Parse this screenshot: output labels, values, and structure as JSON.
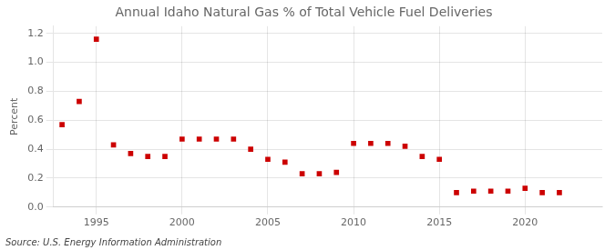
{
  "chart_data": {
    "type": "scatter",
    "title": "Annual Idaho Natural Gas % of Total Vehicle Fuel Deliveries",
    "ylabel": "Percent",
    "annotations": [
      "Source: U.S. Energy Information Administration"
    ],
    "x": [
      1993,
      1994,
      1995,
      1996,
      1997,
      1998,
      1999,
      2000,
      2001,
      2002,
      2003,
      2004,
      2005,
      2006,
      2007,
      2008,
      2009,
      2010,
      2011,
      2012,
      2013,
      2014,
      2015,
      2016,
      2017,
      2018,
      2019,
      2020,
      2021,
      2022,
      2023
    ],
    "values": [
      0.57,
      0.73,
      1.16,
      0.43,
      0.37,
      0.35,
      0.35,
      0.47,
      0.47,
      0.47,
      0.47,
      0.4,
      0.33,
      0.31,
      0.23,
      0.23,
      0.24,
      0.44,
      0.44,
      0.44,
      0.42,
      0.35,
      0.33,
      0.1,
      0.11,
      0.11,
      0.11,
      0.13,
      0.1,
      0.1,
      null
    ],
    "color": "#cc0000",
    "marker": "square",
    "xlim": [
      1992.5,
      2024.5
    ],
    "ylim": [
      0.0,
      1.25
    ],
    "xticks": [
      1995,
      2000,
      2005,
      2010,
      2015,
      2020
    ],
    "yticks": [
      {
        "value": 0.0,
        "label": "0.0"
      },
      0.2,
      0.4,
      0.6,
      0.8,
      {
        "value": 1.0,
        "label": "1.0"
      },
      1.2
    ],
    "grid": true
  }
}
